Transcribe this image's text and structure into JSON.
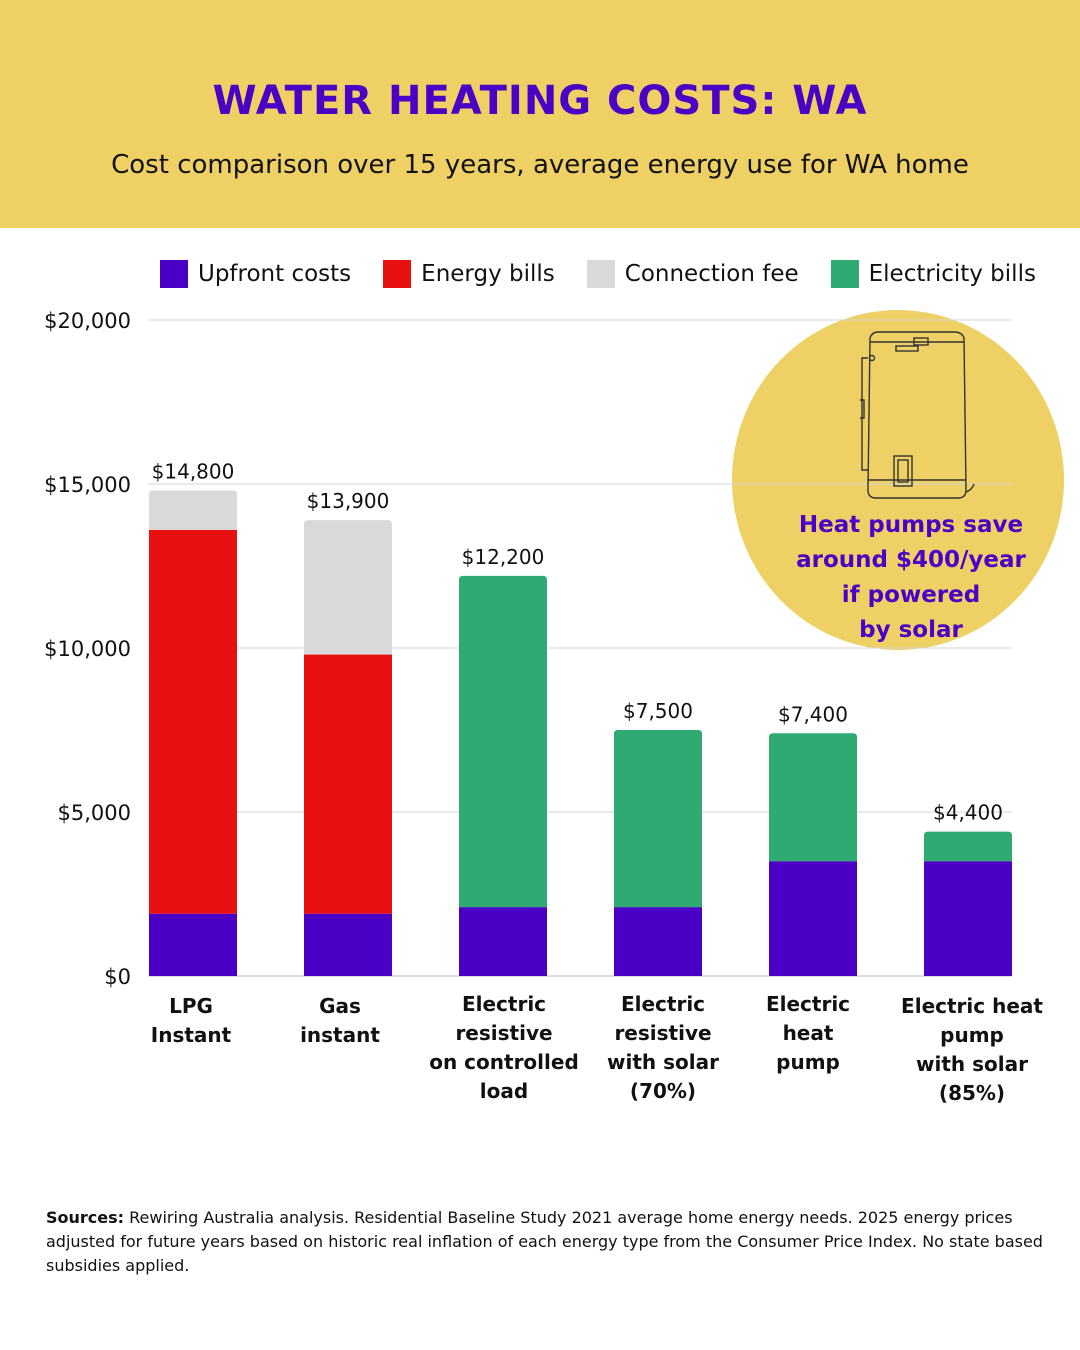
{
  "header": {
    "title": "WATER HEATING COSTS: WA",
    "subtitle": "Cost comparison over 15 years, average energy use for WA home"
  },
  "colors": {
    "header_bg": "#eed064",
    "title": "#4b00c6",
    "upfront": "#4b00c6",
    "energy": "#e81010",
    "connection": "#d9d9d9",
    "electricity": "#2eaa72"
  },
  "legend": [
    {
      "label": "Upfront costs",
      "color": "#4b00c6"
    },
    {
      "label": "Energy bills",
      "color": "#e81010"
    },
    {
      "label": "Connection fee",
      "color": "#d9d9d9"
    },
    {
      "label": "Electricity bills",
      "color": "#2eaa72"
    }
  ],
  "chart_data": {
    "type": "bar",
    "stacked": true,
    "ylim": [
      0,
      20000
    ],
    "yticks": [
      0,
      5000,
      10000,
      15000,
      20000
    ],
    "ytick_labels": [
      "$0",
      "$5,000",
      "$10,000",
      "$15,000",
      "$20,000"
    ],
    "grid": true,
    "legend_position": "top",
    "categories": [
      [
        "LPG",
        "Instant"
      ],
      [
        "Gas",
        "instant"
      ],
      [
        "Electric",
        "resistive",
        "on controlled",
        "load"
      ],
      [
        "Electric",
        "resistive",
        "with solar",
        "(70%)"
      ],
      [
        "Electric",
        "heat",
        "pump"
      ],
      [
        "Electric heat",
        "pump",
        "with solar",
        "(85%)"
      ]
    ],
    "series": [
      {
        "name": "Upfront costs",
        "values": [
          1900,
          1900,
          2100,
          2100,
          3500,
          3500
        ]
      },
      {
        "name": "Energy bills",
        "values": [
          11700,
          7900,
          0,
          0,
          0,
          0
        ]
      },
      {
        "name": "Connection fee",
        "values": [
          1200,
          4100,
          0,
          0,
          0,
          0
        ]
      },
      {
        "name": "Electricity bills",
        "values": [
          0,
          0,
          10100,
          5400,
          3900,
          900
        ]
      }
    ],
    "totals": [
      14800,
      13900,
      12200,
      7500,
      7400,
      4400
    ],
    "total_labels": [
      "$14,800",
      "$13,900",
      "$12,200",
      "$7,500",
      "$7,400",
      "$4,400"
    ]
  },
  "callout": {
    "icon": "water-heater-icon",
    "lines": [
      "Heat pumps save",
      "around $400/year",
      "if powered",
      "by solar"
    ]
  },
  "sources": {
    "label": "Sources:",
    "text": "Rewiring Australia analysis. Residential Baseline Study 2021 average home energy needs. 2025 energy prices adjusted for future years based on historic real inflation of each energy type from the Consumer Price Index. No state based subsidies applied."
  }
}
